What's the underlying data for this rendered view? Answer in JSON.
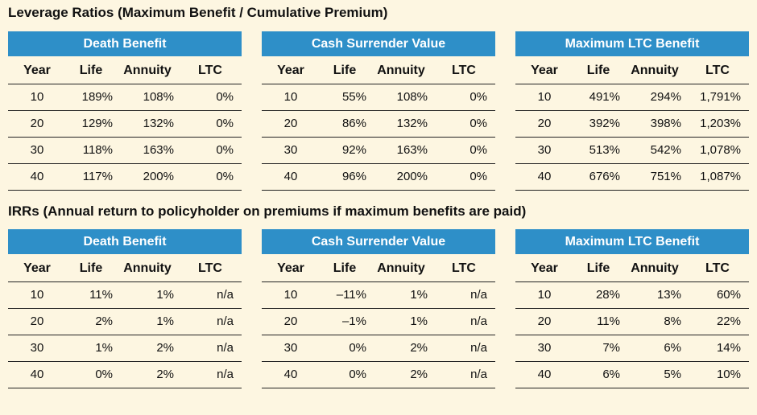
{
  "sections": [
    {
      "title": "Leverage Ratios",
      "subtitle": "(Maximum Benefit / Cumulative Premium)",
      "tables": [
        {
          "heading": "Death Benefit",
          "columns": [
            "Year",
            "Life",
            "Annuity",
            "LTC"
          ],
          "rows": [
            [
              "10",
              "189%",
              "108%",
              "0%"
            ],
            [
              "20",
              "129%",
              "132%",
              "0%"
            ],
            [
              "30",
              "118%",
              "163%",
              "0%"
            ],
            [
              "40",
              "117%",
              "200%",
              "0%"
            ]
          ]
        },
        {
          "heading": "Cash Surrender Value",
          "columns": [
            "Year",
            "Life",
            "Annuity",
            "LTC"
          ],
          "rows": [
            [
              "10",
              "55%",
              "108%",
              "0%"
            ],
            [
              "20",
              "86%",
              "132%",
              "0%"
            ],
            [
              "30",
              "92%",
              "163%",
              "0%"
            ],
            [
              "40",
              "96%",
              "200%",
              "0%"
            ]
          ]
        },
        {
          "heading": "Maximum LTC Benefit",
          "columns": [
            "Year",
            "Life",
            "Annuity",
            "LTC"
          ],
          "rows": [
            [
              "10",
              "491%",
              "294%",
              "1,791%"
            ],
            [
              "20",
              "392%",
              "398%",
              "1,203%"
            ],
            [
              "30",
              "513%",
              "542%",
              "1,078%"
            ],
            [
              "40",
              "676%",
              "751%",
              "1,087%"
            ]
          ]
        }
      ]
    },
    {
      "title": "IRRs",
      "subtitle": "(Annual return to policyholder on premiums if maximum benefits are paid)",
      "tables": [
        {
          "heading": "Death Benefit",
          "columns": [
            "Year",
            "Life",
            "Annuity",
            "LTC"
          ],
          "rows": [
            [
              "10",
              "11%",
              "1%",
              "n/a"
            ],
            [
              "20",
              "2%",
              "1%",
              "n/a"
            ],
            [
              "30",
              "1%",
              "2%",
              "n/a"
            ],
            [
              "40",
              "0%",
              "2%",
              "n/a"
            ]
          ]
        },
        {
          "heading": "Cash Surrender Value",
          "columns": [
            "Year",
            "Life",
            "Annuity",
            "LTC"
          ],
          "rows": [
            [
              "10",
              "–11%",
              "1%",
              "n/a"
            ],
            [
              "20",
              "–1%",
              "1%",
              "n/a"
            ],
            [
              "30",
              "0%",
              "2%",
              "n/a"
            ],
            [
              "40",
              "0%",
              "2%",
              "n/a"
            ]
          ]
        },
        {
          "heading": "Maximum LTC Benefit",
          "columns": [
            "Year",
            "Life",
            "Annuity",
            "LTC"
          ],
          "rows": [
            [
              "10",
              "28%",
              "13%",
              "60%"
            ],
            [
              "20",
              "11%",
              "8%",
              "22%"
            ],
            [
              "30",
              "7%",
              "6%",
              "14%"
            ],
            [
              "40",
              "6%",
              "5%",
              "10%"
            ]
          ]
        }
      ]
    }
  ],
  "colors": {
    "background": "#fdf6e1",
    "header_fill": "#2e8fc8"
  }
}
